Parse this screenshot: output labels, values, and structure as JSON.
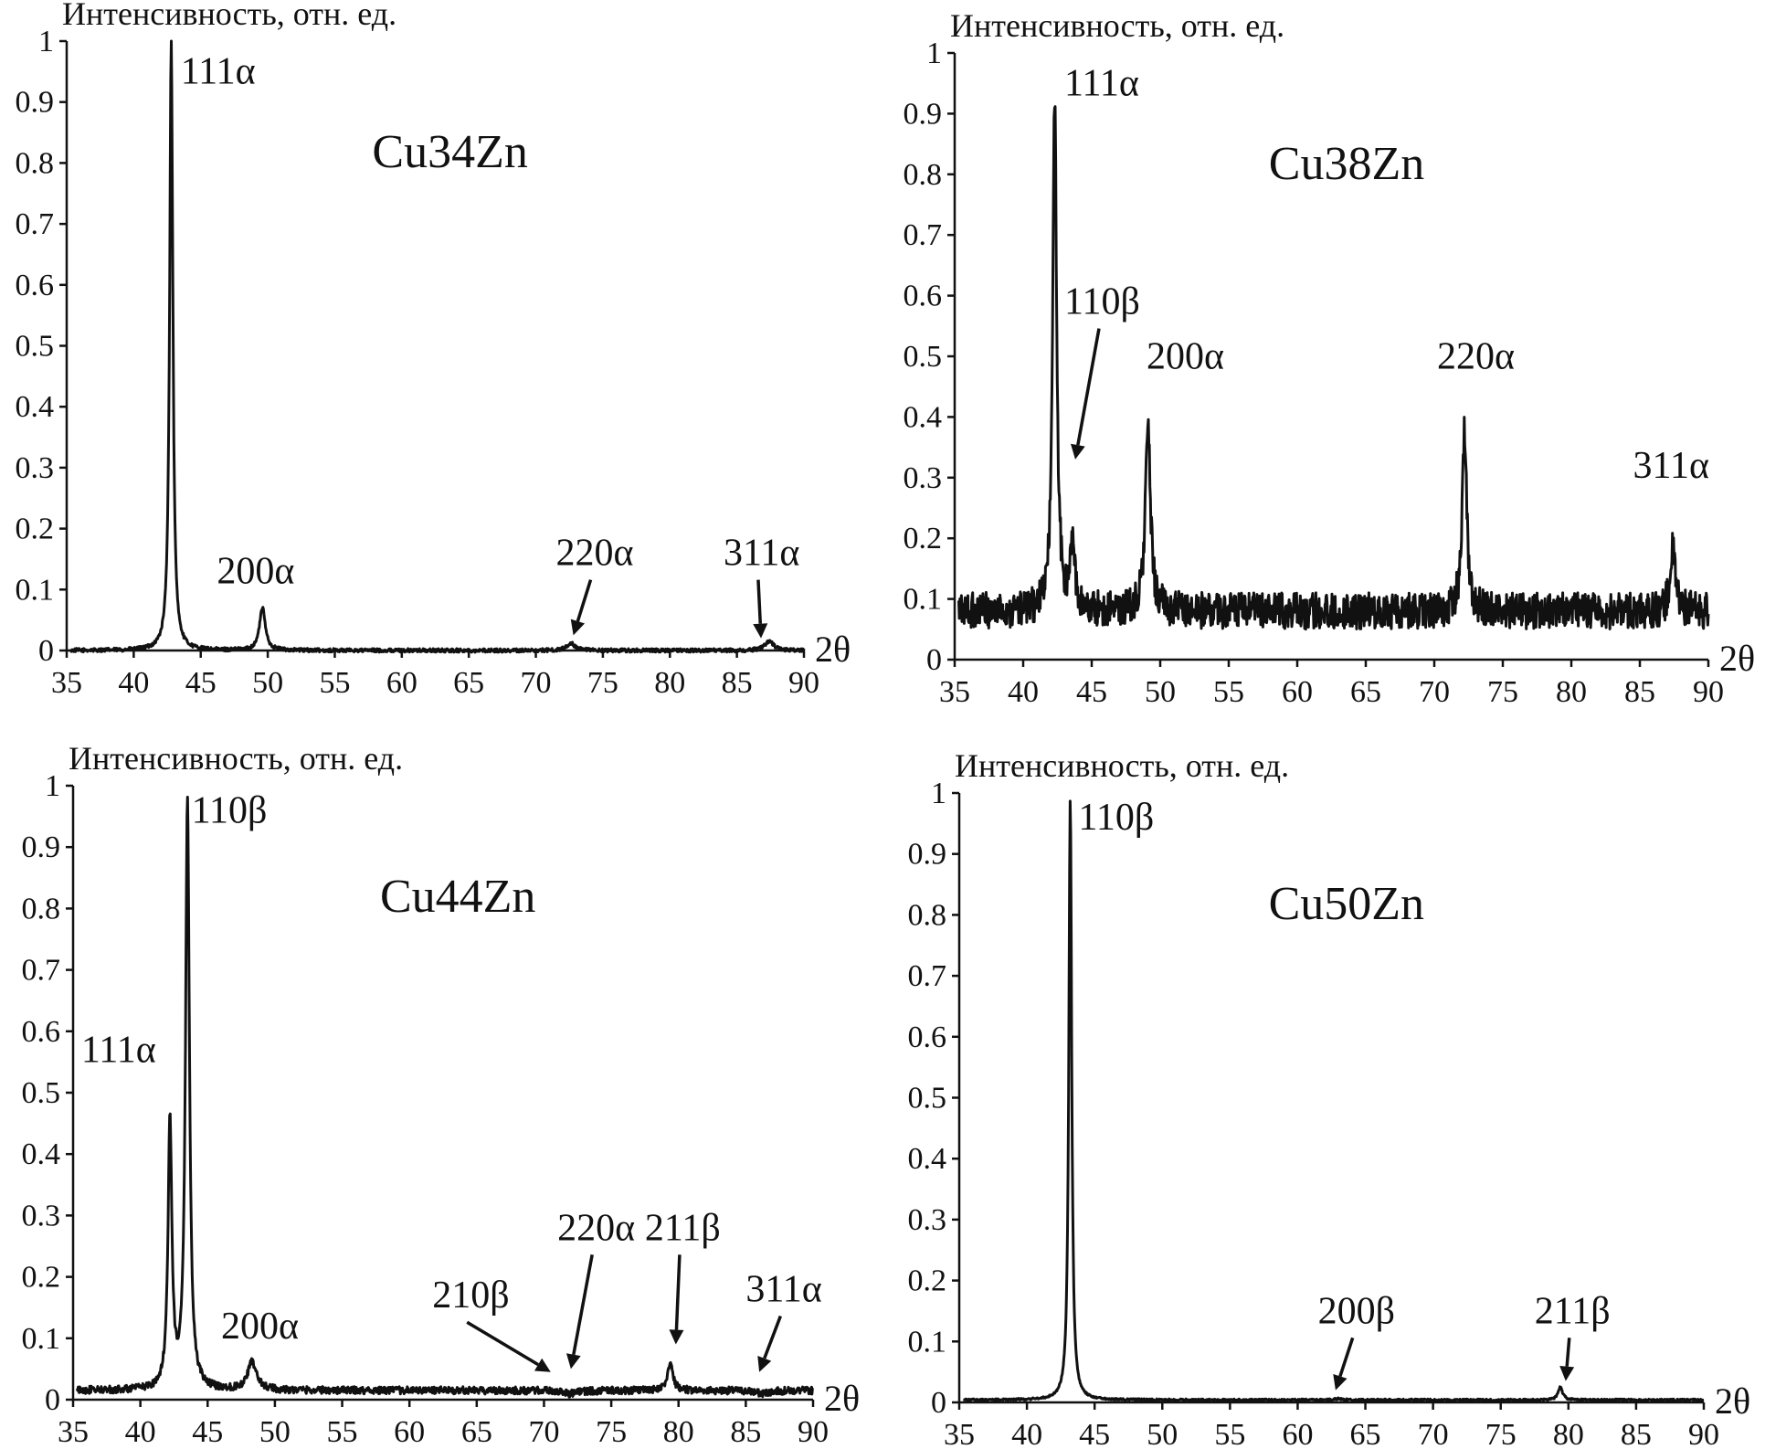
{
  "chart_data": [
    {
      "type": "line",
      "sample_label": "Cu34Zn",
      "ylabel": "Интенсивность, отн. ед.",
      "xlabel": "2θ",
      "xlim": [
        35,
        90
      ],
      "ylim": [
        0,
        1
      ],
      "xticks": [
        "35",
        "40",
        "45",
        "50",
        "55",
        "60",
        "65",
        "70",
        "75",
        "80",
        "85",
        "90"
      ],
      "yticks": [
        "0",
        "0.1",
        "0.2",
        "0.3",
        "0.4",
        "0.5",
        "0.6",
        "0.7",
        "0.8",
        "0.9",
        "1"
      ],
      "noise": 0.003,
      "baseline": 0.0,
      "peaks": [
        {
          "x": 42.8,
          "y": 1.0,
          "width": 0.25
        },
        {
          "x": 49.6,
          "y": 0.07,
          "width": 0.45
        },
        {
          "x": 72.6,
          "y": 0.012,
          "width": 0.6
        },
        {
          "x": 87.4,
          "y": 0.015,
          "width": 0.7
        }
      ],
      "annotations": [
        {
          "text": "111α",
          "x": 43.5,
          "y": 0.93,
          "arrow": false
        },
        {
          "text": "200α",
          "x": 46.2,
          "y": 0.11,
          "arrow": false
        },
        {
          "text": "220α",
          "x": 71.5,
          "y": 0.14,
          "arrow": true,
          "tx": 72.8,
          "ty": 0.025
        },
        {
          "text": "311α",
          "x": 84.0,
          "y": 0.14,
          "arrow": true,
          "tx": 86.8,
          "ty": 0.02
        }
      ]
    },
    {
      "type": "line",
      "sample_label": "Cu38Zn",
      "ylabel": "Интенсивность, отн. ед.",
      "xlabel": "2θ",
      "xlim": [
        35,
        90
      ],
      "ylim": [
        0,
        1
      ],
      "xticks": [
        "35",
        "40",
        "45",
        "50",
        "55",
        "60",
        "65",
        "70",
        "75",
        "80",
        "85",
        "90"
      ],
      "yticks": [
        "0",
        "0.1",
        "0.2",
        "0.3",
        "0.4",
        "0.5",
        "0.6",
        "0.7",
        "0.8",
        "0.9",
        "1"
      ],
      "noise": 0.03,
      "baseline": 0.08,
      "peaks": [
        {
          "x": 42.3,
          "y": 0.92,
          "width": 0.3
        },
        {
          "x": 43.6,
          "y": 0.2,
          "width": 0.3
        },
        {
          "x": 49.1,
          "y": 0.38,
          "width": 0.4
        },
        {
          "x": 72.2,
          "y": 0.38,
          "width": 0.35
        },
        {
          "x": 87.4,
          "y": 0.18,
          "width": 0.4
        }
      ],
      "annotations": [
        {
          "text": "111α",
          "x": 43.0,
          "y": 0.93,
          "arrow": false
        },
        {
          "text": "110β",
          "x": 43.0,
          "y": 0.57,
          "arrow": true,
          "tx": 43.8,
          "ty": 0.33
        },
        {
          "text": "200α",
          "x": 49.0,
          "y": 0.48,
          "arrow": false
        },
        {
          "text": "220α",
          "x": 70.2,
          "y": 0.48,
          "arrow": false
        },
        {
          "text": "311α",
          "x": 84.5,
          "y": 0.3,
          "arrow": false
        }
      ]
    },
    {
      "type": "line",
      "sample_label": "Cu44Zn",
      "ylabel": "Интенсивность, отн. ед.",
      "xlabel": "2θ",
      "xlim": [
        35,
        90
      ],
      "ylim": [
        0,
        1
      ],
      "xticks": [
        "35",
        "40",
        "45",
        "50",
        "55",
        "60",
        "65",
        "70",
        "75",
        "80",
        "85",
        "90"
      ],
      "yticks": [
        "0",
        "0.1",
        "0.2",
        "0.3",
        "0.4",
        "0.5",
        "0.6",
        "0.7",
        "0.8",
        "0.9",
        "1"
      ],
      "noise": 0.006,
      "baseline": 0.015,
      "peaks": [
        {
          "x": 42.2,
          "y": 0.45,
          "width": 0.3
        },
        {
          "x": 43.5,
          "y": 0.98,
          "width": 0.3
        },
        {
          "x": 48.3,
          "y": 0.06,
          "width": 0.7
        },
        {
          "x": 72.0,
          "y": 0.01,
          "width": 1.2
        },
        {
          "x": 79.4,
          "y": 0.06,
          "width": 0.4
        },
        {
          "x": 86.2,
          "y": 0.01,
          "width": 1.0
        }
      ],
      "annotations": [
        {
          "text": "111α",
          "x": 35.6,
          "y": 0.55,
          "arrow": false
        },
        {
          "text": "110β",
          "x": 43.8,
          "y": 0.94,
          "arrow": false
        },
        {
          "text": "200α",
          "x": 46.0,
          "y": 0.1,
          "arrow": false
        },
        {
          "text": "210β",
          "x": 61.7,
          "y": 0.15,
          "arrow": true,
          "tx": 70.5,
          "ty": 0.045
        },
        {
          "text": "220α",
          "x": 71.0,
          "y": 0.26,
          "arrow": true,
          "tx": 72.0,
          "ty": 0.05
        },
        {
          "text": "211β",
          "x": 77.5,
          "y": 0.26,
          "arrow": true,
          "tx": 79.8,
          "ty": 0.09
        },
        {
          "text": "311α",
          "x": 85.0,
          "y": 0.16,
          "arrow": true,
          "tx": 86.0,
          "ty": 0.045
        }
      ]
    },
    {
      "type": "line",
      "sample_label": "Cu50Zn",
      "ylabel": "Интенсивность, отн. ед.",
      "xlabel": "2θ",
      "xlim": [
        35,
        90
      ],
      "ylim": [
        0,
        1
      ],
      "xticks": [
        "35",
        "40",
        "45",
        "50",
        "55",
        "60",
        "65",
        "70",
        "75",
        "80",
        "85",
        "90"
      ],
      "yticks": [
        "0",
        "0.1",
        "0.2",
        "0.3",
        "0.4",
        "0.5",
        "0.6",
        "0.7",
        "0.8",
        "0.9",
        "1"
      ],
      "noise": 0.0015,
      "baseline": 0.004,
      "peaks": [
        {
          "x": 43.2,
          "y": 0.99,
          "width": 0.22
        },
        {
          "x": 63.0,
          "y": 0.006,
          "width": 0.6
        },
        {
          "x": 79.4,
          "y": 0.025,
          "width": 0.35
        }
      ],
      "annotations": [
        {
          "text": "110β",
          "x": 43.8,
          "y": 0.94,
          "arrow": false
        },
        {
          "text": "200β",
          "x": 61.5,
          "y": 0.13,
          "arrow": true,
          "tx": 62.8,
          "ty": 0.02
        },
        {
          "text": "211β",
          "x": 77.5,
          "y": 0.13,
          "arrow": true,
          "tx": 79.8,
          "ty": 0.035
        }
      ]
    }
  ]
}
